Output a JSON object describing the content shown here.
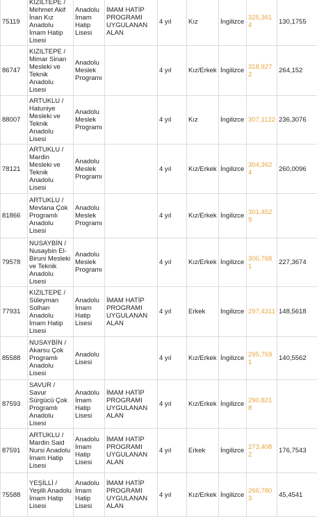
{
  "rows": [
    {
      "code": "75119",
      "name": "KIZILTEPE / Mehmet Akif İnan Kız Anadolu İmam Hatip Lisesi",
      "type": "Anadolu İmam Hatip Lisesi",
      "note": "İMAM HATİP PROGRAMI UYGULANAN ALAN",
      "duration": "4 yıl",
      "gender": "Kız",
      "language": "İngilizce",
      "score": "325,3614",
      "base": "130,1755"
    },
    {
      "code": "86747",
      "name": "KIZILTEPE / Mimar Sinan Mesleki ve Teknik Anadolu Lisesi",
      "type": "Anadolu Meslek Programı",
      "note": "",
      "duration": "4 yıl",
      "gender": "Kız/Erkek",
      "language": "İngilizce",
      "score": "318,9272",
      "base": "264,152"
    },
    {
      "code": "88007",
      "name": "ARTUKLU / Hatuniye Mesleki ve Teknik Anadolu Lisesi",
      "type": "Anadolu Meslek Programı",
      "note": "",
      "duration": "4 yıl",
      "gender": "Kız",
      "language": "İngilizce",
      "score": "307,1122",
      "base": "236,3076"
    },
    {
      "code": "78121",
      "name": "ARTUKLU / Mardin Mesleki ve Teknik Anadolu Lisesi",
      "type": "Anadolu Meslek Programı",
      "note": "",
      "duration": "4 yıl",
      "gender": "Kız/Erkek",
      "language": "İngilizce",
      "score": "304,3624",
      "base": "260,0096"
    },
    {
      "code": "81866",
      "name": "ARTUKLU / Mevlana Çok Programlı Anadolu Lisesi",
      "type": "Anadolu Meslek Programı",
      "note": "",
      "duration": "4 yıl",
      "gender": "Kız/Erkek",
      "language": "İngilizce",
      "score": "301,4529",
      "base": ""
    },
    {
      "code": "79578",
      "name": "NUSAYBİN / Nusaybin El-Biruni Mesleki ve Teknik Anadolu Lisesi",
      "type": "Anadolu Meslek Programı",
      "note": "",
      "duration": "4 yıl",
      "gender": "Kız/Erkek",
      "language": "İngilizce",
      "score": "300,7681",
      "base": "227,3674"
    },
    {
      "code": "77931",
      "name": "KIZILTEPE / Süleyman Solhan Anadolu İmam Hatip Lisesi",
      "type": "Anadolu İmam Hatip Lisesi",
      "note": "İMAM HATİP PROGRAMI UYGULANAN ALAN",
      "duration": "4 yıl",
      "gender": "Erkek",
      "language": "İngilizce",
      "score": "297,4311",
      "base": "148,5618"
    },
    {
      "code": "85588",
      "name": "NUSAYBİN / Akarsu Çok Programlı Anadolu Lisesi",
      "type": "Anadolu Lisesi",
      "note": "",
      "duration": "4 yıl",
      "gender": "Kız/Erkek",
      "language": "İngilizce",
      "score": "295,7591",
      "base": "140,5562"
    },
    {
      "code": "87593",
      "name": "SAVUR / Savur Sürgücü Çok Programlı Anadolu Lisesi",
      "type": "Anadolu İmam Hatip Lisesi",
      "note": "İMAM HATİP PROGRAMI UYGULANAN ALAN",
      "duration": "4 yıl",
      "gender": "Kız/Erkek",
      "language": "İngilizce",
      "score": "290,8218",
      "base": ""
    },
    {
      "code": "87591",
      "name": "ARTUKLU / Mardin Said Nursi Anadolu İmam Hatip Lisesi",
      "type": "Anadolu İmam Hatip Lisesi",
      "note": "İMAM HATİP PROGRAMI UYGULANAN ALAN",
      "duration": "4 yıl",
      "gender": "Erkek",
      "language": "İngilizce",
      "score": "273,4082",
      "base": "176,7543"
    },
    {
      "code": "75588",
      "name": "YEŞİLLİ / Yeşilli Anadolu İmam Hatip Lisesi",
      "type": "Anadolu İmam Hatip Lisesi",
      "note": "İMAM HATİP PROGRAMI UYGULANAN ALAN",
      "duration": "4 yıl",
      "gender": "Kız/Erkek",
      "language": "İngilizce",
      "score": "266,7803",
      "base": "45,4541"
    }
  ]
}
